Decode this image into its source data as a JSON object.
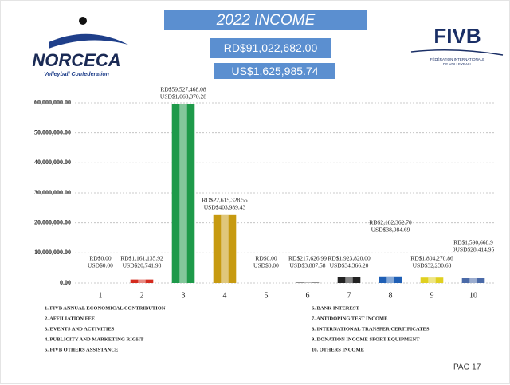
{
  "header": {
    "title": "2022 INCOME",
    "total_rd": "RD$91,022,682.00",
    "total_us": "US$1,625,985.74",
    "left_logo": {
      "name": "NORCECA",
      "tagline": "Volleyball Confederation"
    },
    "right_logo": {
      "name": "FIVB",
      "tagline_1": "FÉDÉRATION INTERNATIONALE",
      "tagline_2": "DE VOLLEYBALL"
    }
  },
  "chart_data": {
    "type": "bar",
    "categories": [
      "1",
      "2",
      "3",
      "4",
      "5",
      "6",
      "7",
      "8",
      "9",
      "10"
    ],
    "values": [
      0,
      1161135.92,
      59527468.08,
      22615328.55,
      0,
      217626.99,
      1923820.0,
      2182362.7,
      1804270.86,
      1590668.9
    ],
    "value_labels": [
      "RD$0.00",
      "RD$1,161,135.92",
      "RD$59,527,468.08",
      "RD$22,615,328.55",
      "RD$0.00",
      "RD$217,626.99",
      "RD$1,923,820.00",
      "RD$2,182,362.70",
      "RD$1,804,270.86",
      "RD$1,590,668.9"
    ],
    "usd_labels": [
      "USD$0.00",
      "USD$20,741.98",
      "USD$1,063,370.28",
      "USD$403,989.43",
      "USD$0.00",
      "USD$3,887.58",
      "USD$34,366.20",
      "USD$38,984.69",
      "USD$32,230.63",
      "0USD$28,414.95"
    ],
    "colors": [
      "#888888",
      "#d42a1e",
      "#1e9a4a",
      "#c79a10",
      "#888888",
      "#777777",
      "#222222",
      "#1f5fb5",
      "#e0d020",
      "#4a6aa8"
    ],
    "ylim": [
      0,
      60000000
    ],
    "yticks": [
      {
        "value": 0,
        "label": "0.00"
      },
      {
        "value": 10000000,
        "label": "10,000,000.00"
      },
      {
        "value": 20000000,
        "label": "20,000,000.00"
      },
      {
        "value": 30000000,
        "label": "30,000,000.00"
      },
      {
        "value": 40000000,
        "label": "40,000,000.00"
      },
      {
        "value": 50000000,
        "label": "50,000,000.00"
      },
      {
        "value": 60000000,
        "label": "60,000,000.00"
      }
    ],
    "grid": true,
    "legend_items": [
      "1. FIVB ANNUAL ECONOMICAL CONTRIBUTION",
      "2. AFFILIATION FEE",
      "3. EVENTS AND ACTIVITIES",
      "4. PUBLICITY AND MARKETING RIGHT",
      "5. FIVB OTHERS ASSISTANCE",
      "6. BANK INTEREST",
      "7. ANTIDOPING TEST INCOME",
      "8. INTERNATIONAL TRANSFER CERTIFICATES",
      "9. DONATION INCOME SPORT EQUIPMENT",
      "10. OTHERS INCOME"
    ]
  },
  "footer": {
    "page": "PAG 17-"
  }
}
